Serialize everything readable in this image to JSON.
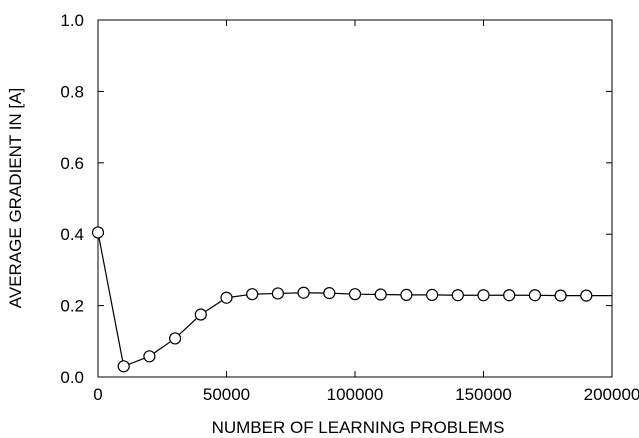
{
  "chart_data": {
    "type": "line",
    "title": "",
    "xlabel": "NUMBER OF LEARNING PROBLEMS",
    "ylabel": "AVERAGE GRADIENT IN [A]",
    "xlim": [
      0,
      200000
    ],
    "ylim": [
      0.0,
      1.0
    ],
    "grid": false,
    "x_ticks": [
      "0",
      "50000",
      "100000",
      "150000",
      "200000"
    ],
    "x_tick_values": [
      0,
      50000,
      100000,
      150000,
      200000
    ],
    "y_ticks": [
      "0.0",
      "0.2",
      "0.4",
      "0.6",
      "0.8",
      "1.0"
    ],
    "y_tick_values": [
      0.0,
      0.2,
      0.4,
      0.6,
      0.8,
      1.0
    ],
    "series": [
      {
        "color": "#000000",
        "marker": "open-circle",
        "x": [
          0,
          10000,
          20000,
          30000,
          40000,
          50000,
          60000,
          70000,
          80000,
          90000,
          100000,
          110000,
          120000,
          130000,
          140000,
          150000,
          160000,
          170000,
          180000,
          190000
        ],
        "y": [
          0.405,
          0.03,
          0.058,
          0.108,
          0.175,
          0.222,
          0.232,
          0.234,
          0.236,
          0.235,
          0.232,
          0.231,
          0.23,
          0.23,
          0.229,
          0.229,
          0.229,
          0.229,
          0.228,
          0.228
        ]
      }
    ],
    "line_extends_to_x": 200000
  }
}
